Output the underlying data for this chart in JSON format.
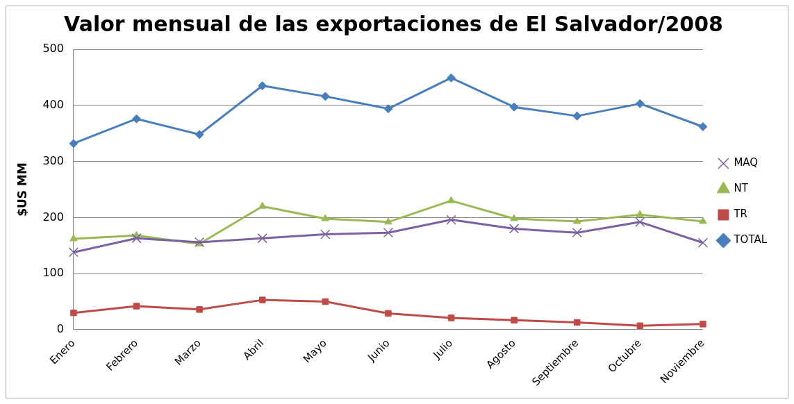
{
  "chart_data": {
    "type": "line",
    "title": "Valor mensual de las exportaciones de El Salvador/2008",
    "ylabel": "$US MM",
    "categories": [
      "Enero",
      "Febrero",
      "Marzo",
      "Abril",
      "Mayo",
      "Junio",
      "Julio",
      "Agosto",
      "Septiembre",
      "Octubre",
      "Noviembre"
    ],
    "series": [
      {
        "name": "TOTAL",
        "color": "#4a7ebb",
        "marker": "diamond",
        "values": [
          332,
          376,
          348,
          435,
          416,
          394,
          449,
          397,
          381,
          403,
          362
        ]
      },
      {
        "name": "TR",
        "color": "#be4b48",
        "marker": "square",
        "values": [
          30,
          42,
          36,
          53,
          50,
          29,
          21,
          17,
          13,
          7,
          10
        ]
      },
      {
        "name": "NT",
        "color": "#98b954",
        "marker": "triangle",
        "values": [
          162,
          168,
          153,
          220,
          198,
          192,
          230,
          198,
          193,
          205,
          193
        ]
      },
      {
        "name": "MAQ",
        "color": "#7d60a0",
        "marker": "cross",
        "values": [
          138,
          163,
          156,
          163,
          170,
          173,
          196,
          180,
          173,
          192,
          155
        ]
      }
    ],
    "ylim": [
      0,
      500
    ],
    "yticks": [
      0,
      100,
      200,
      300,
      400,
      500
    ],
    "grid": "y",
    "legend": "right"
  }
}
